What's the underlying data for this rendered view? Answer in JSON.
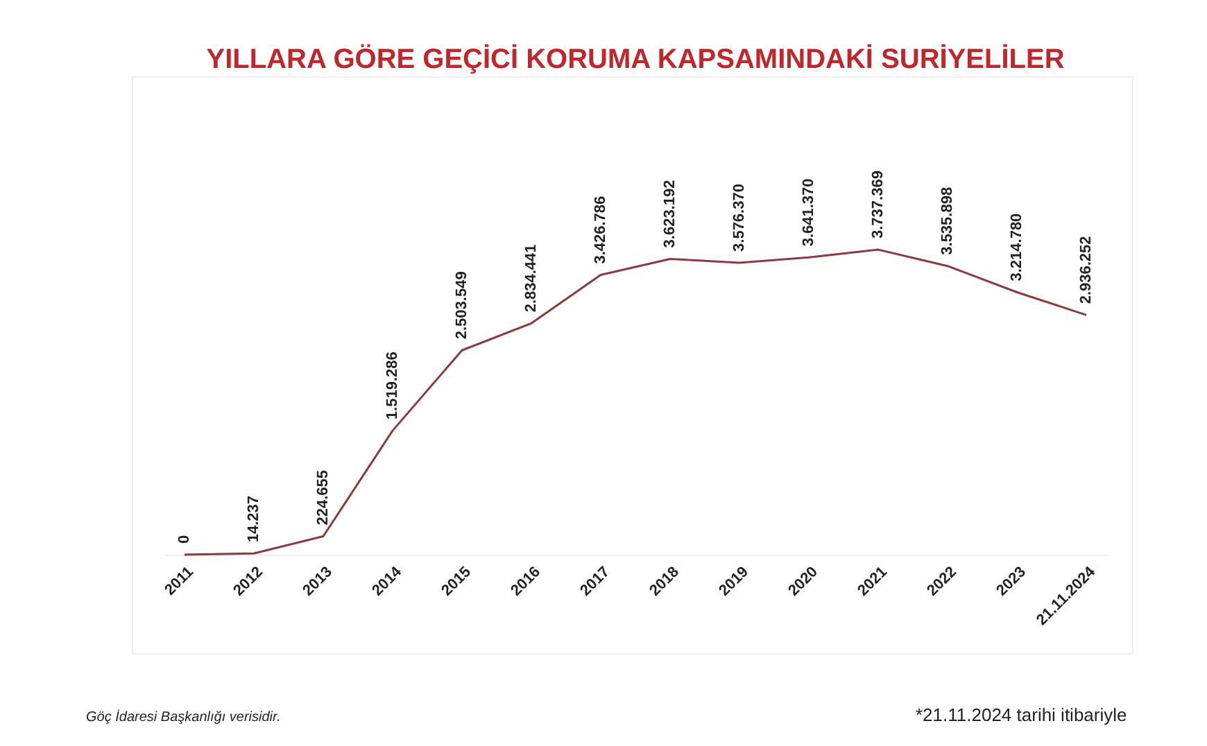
{
  "chart_data": {
    "type": "line",
    "title": "YILLARA GÖRE GEÇİCİ KORUMA KAPSAMINDAKİ SURİYELİLER",
    "categories": [
      "2011",
      "2012",
      "2013",
      "2014",
      "2015",
      "2016",
      "2017",
      "2018",
      "2019",
      "2020",
      "2021",
      "2022",
      "2023",
      "21.11.2024"
    ],
    "series": [
      {
        "color": "#8b3a3f",
        "values": [
          0,
          14237,
          224655,
          1519286,
          2503549,
          2834441,
          3426786,
          3623192,
          3576370,
          3641370,
          3737369,
          3535898,
          3214780,
          2936252
        ],
        "value_labels": [
          "0",
          "14.237",
          "224.655",
          "1.519.286",
          "2.503.549",
          "2.834.441",
          "3.426.786",
          "3.623.192",
          "3.576.370",
          "3.641.370",
          "3.737.369",
          "3.535.898",
          "3.214.780",
          "2.936.252"
        ]
      }
    ],
    "annotations": [
      "Göç İdaresi Başkanlığı verisidir.",
      "*21.11.2024 tarihi itibariyle"
    ],
    "marker": "none",
    "grid": false,
    "legend": false
  }
}
